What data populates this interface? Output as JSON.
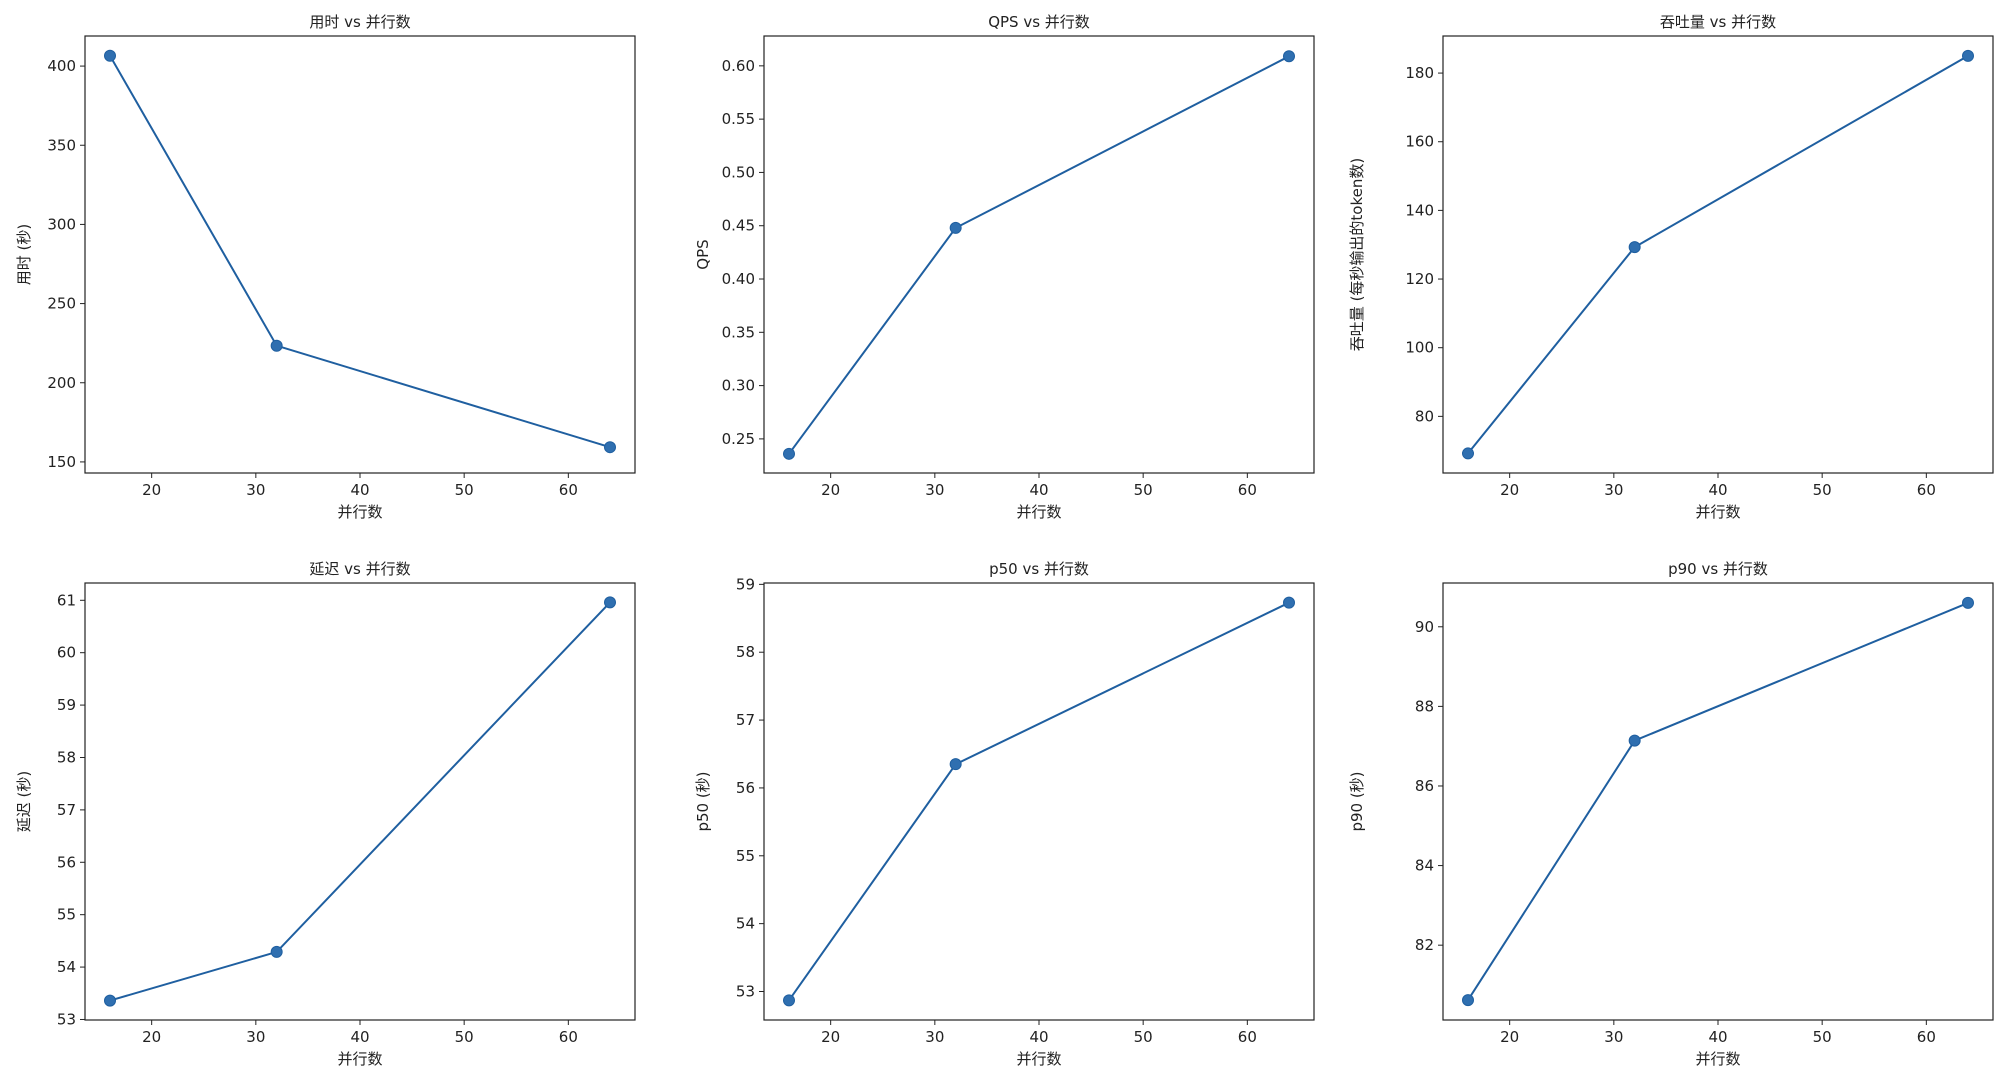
{
  "chart_data": [
    {
      "type": "line",
      "title": "用时 vs 并行数",
      "xlabel": "并行数",
      "ylabel": "用时 (秒)",
      "x": [
        16,
        32,
        64
      ],
      "series": [
        {
          "values": [
            406.5,
            223.4,
            159.3
          ]
        }
      ],
      "xlim": [
        13.6,
        66.4
      ],
      "ylim": [
        143.0,
        419.0
      ],
      "xticks": [
        20,
        30,
        40,
        50,
        60
      ],
      "yticks": [
        150,
        200,
        250,
        300,
        350,
        400
      ],
      "grid": false
    },
    {
      "type": "line",
      "title": "QPS vs 并行数",
      "xlabel": "并行数",
      "ylabel": "QPS",
      "x": [
        16,
        32,
        64
      ],
      "series": [
        {
          "values": [
            0.236,
            0.448,
            0.609
          ]
        }
      ],
      "xlim": [
        13.6,
        66.4
      ],
      "ylim": [
        0.218,
        0.628
      ],
      "xticks": [
        20,
        30,
        40,
        50,
        60
      ],
      "yticks": [
        0.25,
        0.3,
        0.35,
        0.4,
        0.45,
        0.5,
        0.55,
        0.6
      ],
      "ytick_decimals": 2,
      "grid": false
    },
    {
      "type": "line",
      "title": "吞吐量 vs 并行数",
      "xlabel": "并行数",
      "ylabel": "吞吐量 (每秒输出的token数)",
      "x": [
        16,
        32,
        64
      ],
      "series": [
        {
          "values": [
            69.2,
            129.3,
            185.0
          ]
        }
      ],
      "xlim": [
        13.6,
        66.4
      ],
      "ylim": [
        63.5,
        190.8
      ],
      "xticks": [
        20,
        30,
        40,
        50,
        60
      ],
      "yticks": [
        80,
        100,
        120,
        140,
        160,
        180
      ],
      "grid": false
    },
    {
      "type": "line",
      "title": "延迟 vs 并行数",
      "xlabel": "并行数",
      "ylabel": "延迟 (秒)",
      "x": [
        16,
        32,
        64
      ],
      "series": [
        {
          "values": [
            53.36,
            54.29,
            60.96
          ]
        }
      ],
      "xlim": [
        13.6,
        66.4
      ],
      "ylim": [
        52.99,
        61.33
      ],
      "xticks": [
        20,
        30,
        40,
        50,
        60
      ],
      "yticks": [
        53,
        54,
        55,
        56,
        57,
        58,
        59,
        60,
        61
      ],
      "grid": false
    },
    {
      "type": "line",
      "title": "p50 vs 并行数",
      "xlabel": "并行数",
      "ylabel": "p50 (秒)",
      "x": [
        16,
        32,
        64
      ],
      "series": [
        {
          "values": [
            52.87,
            56.35,
            58.73
          ]
        }
      ],
      "xlim": [
        13.6,
        66.4
      ],
      "ylim": [
        52.58,
        59.02
      ],
      "xticks": [
        20,
        30,
        40,
        50,
        60
      ],
      "yticks": [
        53,
        54,
        55,
        56,
        57,
        58,
        59
      ],
      "grid": false
    },
    {
      "type": "line",
      "title": "p90 vs 并行数",
      "xlabel": "并行数",
      "ylabel": "p90 (秒)",
      "x": [
        16,
        32,
        64
      ],
      "series": [
        {
          "values": [
            80.62,
            87.14,
            90.6
          ]
        }
      ],
      "xlim": [
        13.6,
        66.4
      ],
      "ylim": [
        80.12,
        91.1
      ],
      "xticks": [
        20,
        30,
        40,
        50,
        60
      ],
      "yticks": [
        82,
        84,
        86,
        88,
        90
      ],
      "grid": false
    }
  ],
  "colors": {
    "line": "#1f5fa0",
    "marker": "#2f6fb0",
    "axes": "#222222",
    "background": "#ffffff"
  }
}
